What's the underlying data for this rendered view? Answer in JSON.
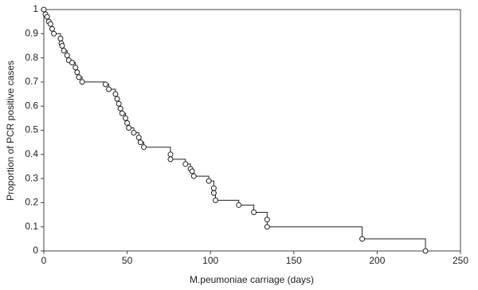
{
  "chart_data": {
    "type": "step",
    "x_label": "M.peumoniae carriage (days)",
    "y_label": "Proportion of PCR positive cases",
    "xlim": [
      0,
      250
    ],
    "ylim": [
      0,
      1
    ],
    "xticks": [
      0,
      50,
      100,
      150,
      200,
      250
    ],
    "yticks": [
      0,
      0.1,
      0.2,
      0.3,
      0.4,
      0.5,
      0.6,
      0.7,
      0.8,
      0.9,
      1
    ],
    "color": "#222222",
    "series": [
      {
        "x": [
          0,
          1,
          2,
          3,
          4,
          5,
          6,
          10,
          10.5,
          11,
          12,
          14,
          15,
          17,
          19,
          20,
          21,
          23,
          37,
          39,
          43,
          44,
          45,
          46,
          47,
          49,
          50,
          51,
          54,
          57,
          58,
          60,
          76,
          76,
          85,
          88,
          89,
          90,
          99,
          102,
          102,
          103,
          117,
          126,
          134,
          134,
          191,
          229
        ],
        "values": [
          1,
          0.98,
          0.97,
          0.95,
          0.94,
          0.92,
          0.9,
          0.88,
          0.86,
          0.85,
          0.83,
          0.81,
          0.79,
          0.78,
          0.76,
          0.74,
          0.72,
          0.7,
          0.69,
          0.67,
          0.65,
          0.63,
          0.61,
          0.59,
          0.57,
          0.55,
          0.53,
          0.51,
          0.49,
          0.47,
          0.45,
          0.43,
          0.4,
          0.38,
          0.36,
          0.34,
          0.33,
          0.31,
          0.29,
          0.26,
          0.24,
          0.21,
          0.19,
          0.16,
          0.13,
          0.1,
          0.05,
          0
        ]
      }
    ]
  }
}
